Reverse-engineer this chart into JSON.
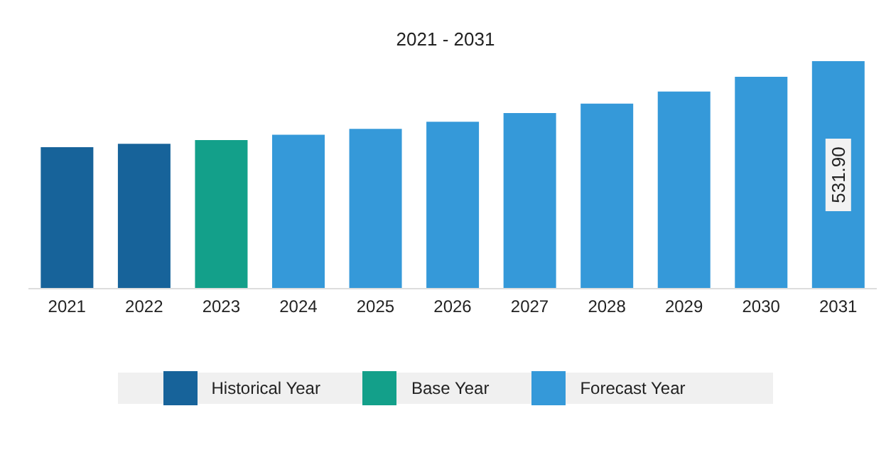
{
  "chart_data": {
    "type": "bar",
    "title": "2021 - 2031",
    "categories": [
      "2021",
      "2022",
      "2023",
      "2024",
      "2025",
      "2026",
      "2027",
      "2028",
      "2029",
      "2030",
      "2031"
    ],
    "stacked": true,
    "legend": "bottom",
    "series": [
      {
        "name": "Historical Year",
        "color": "#17639a",
        "values": [
          330.6,
          338.5,
          null,
          null,
          null,
          null,
          null,
          null,
          null,
          null,
          null
        ]
      },
      {
        "name": "Base Year",
        "color": "#13a08a",
        "values": [
          null,
          null,
          347.2,
          null,
          null,
          null,
          null,
          null,
          null,
          null,
          null
        ]
      },
      {
        "name": "Forecast Year",
        "color": "#3599d9",
        "values": [
          null,
          null,
          null,
          359.8,
          373.5,
          390.1,
          410.6,
          432.7,
          461,
          495.2,
          531.9
        ],
        "value_labels": [
          null,
          null,
          null,
          null,
          null,
          null,
          null,
          null,
          null,
          null,
          "531.90"
        ]
      }
    ]
  }
}
